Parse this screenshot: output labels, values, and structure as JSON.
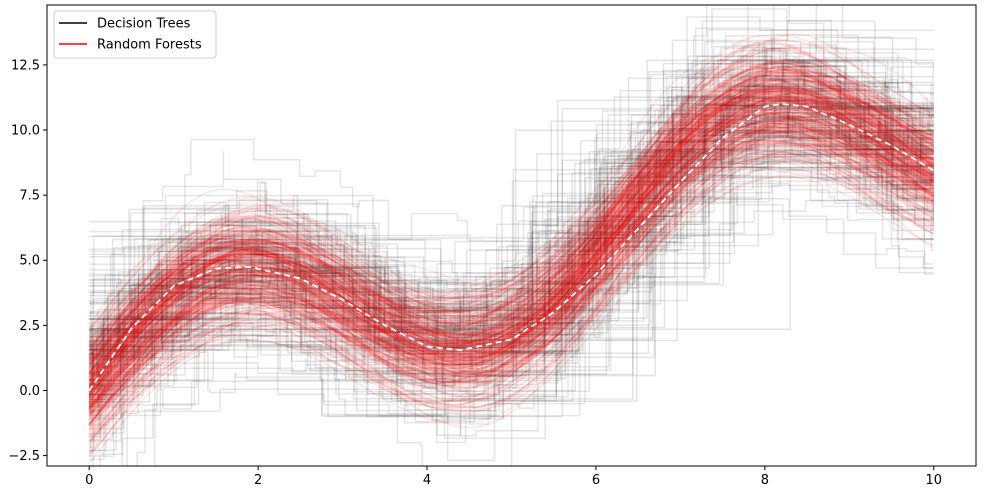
{
  "chart_data": {
    "type": "line",
    "title": "",
    "xlabel": "",
    "ylabel": "",
    "xlim": [
      -0.5,
      10.5
    ],
    "ylim": [
      -2.9,
      14.8
    ],
    "x_ticks": [
      0,
      2,
      4,
      6,
      8,
      10
    ],
    "x_tick_labels": [
      "0",
      "2",
      "4",
      "6",
      "8",
      "10"
    ],
    "y_ticks": [
      -2.5,
      0.0,
      2.5,
      5.0,
      7.5,
      10.0,
      12.5
    ],
    "y_tick_labels": [
      "−2.5",
      "0.0",
      "2.5",
      "5.0",
      "7.5",
      "10.0",
      "12.5"
    ],
    "legend": {
      "position": "top-left",
      "entries": [
        {
          "label": "Decision Trees",
          "color": "#000000"
        },
        {
          "label": "Random Forests",
          "color": "#ff0000"
        }
      ]
    },
    "series": [
      {
        "name": "Decision Trees",
        "color": "#000000",
        "style": "many semi-transparent step functions",
        "alpha": 0.1
      },
      {
        "name": "Random Forests",
        "color": "#ff0000",
        "style": "many semi-transparent smooth curves",
        "alpha": 0.1
      },
      {
        "color": "#ffffff",
        "style": "dashed",
        "x": [
          0,
          0.5,
          1.0,
          1.5,
          1.9,
          2.5,
          3.0,
          3.5,
          4.0,
          4.4,
          5.0,
          5.5,
          6.0,
          6.5,
          7.0,
          7.5,
          8.0,
          8.2,
          8.5,
          9.0,
          9.5,
          10.0
        ],
        "y": [
          0.0,
          2.39,
          4.01,
          4.68,
          4.75,
          4.3,
          3.48,
          2.5,
          1.69,
          1.55,
          1.96,
          3.0,
          4.46,
          6.22,
          8.0,
          9.7,
          10.9,
          11.0,
          10.9,
          10.2,
          9.4,
          8.44
        ]
      }
    ]
  }
}
